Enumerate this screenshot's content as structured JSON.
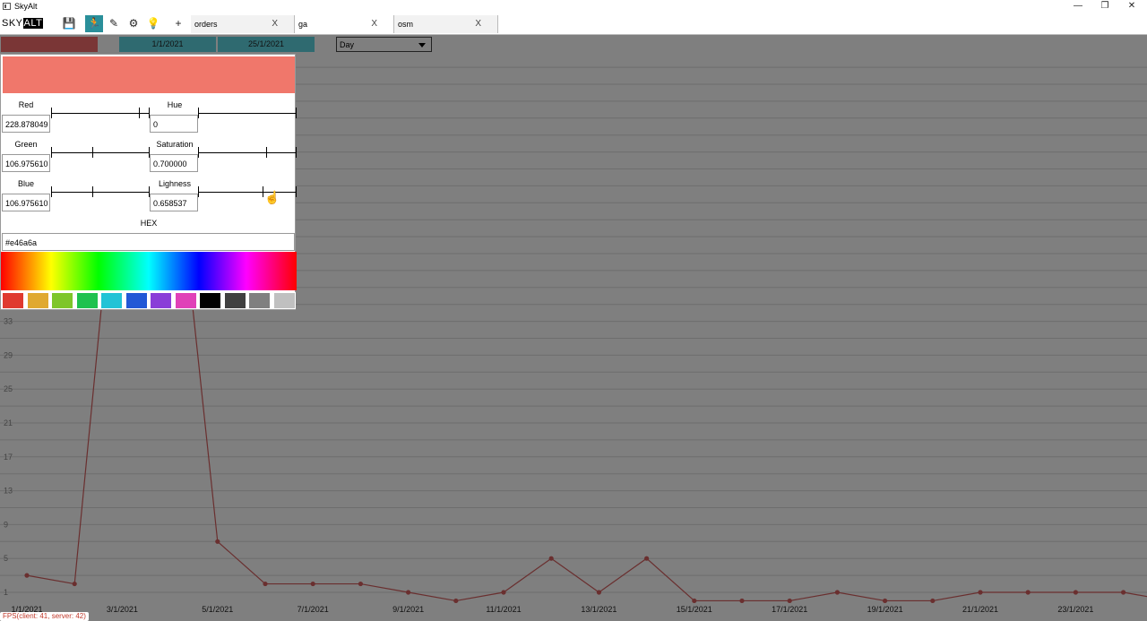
{
  "window": {
    "title": "SkyAlt",
    "minimize": "—",
    "restore": "❐",
    "close": "✕"
  },
  "logo": {
    "sky": "SKY",
    "alt": "ALT"
  },
  "toolbar": {
    "icons": [
      {
        "name": "save-icon",
        "glyph": "💾"
      },
      {
        "name": "run-icon",
        "glyph": "🏃"
      },
      {
        "name": "edit-icon",
        "glyph": "✎"
      },
      {
        "name": "settings-icon",
        "glyph": "⚙"
      },
      {
        "name": "idea-icon",
        "glyph": "💡"
      },
      {
        "name": "add-icon",
        "glyph": "+"
      }
    ],
    "tabs": [
      {
        "label": "orders",
        "close": "X",
        "active": false
      },
      {
        "label": "ga",
        "close": "X",
        "active": true
      },
      {
        "label": "osm",
        "close": "X",
        "active": false
      }
    ]
  },
  "filters": {
    "start_date": "1/1/2021",
    "end_date": "25/1/2021",
    "group_by": "Day"
  },
  "color_picker": {
    "preview_color": "#f0776b",
    "red_label": "Red",
    "red_value": "228.878049",
    "green_label": "Green",
    "green_value": "106.975610",
    "blue_label": "Blue",
    "blue_value": "106.975610",
    "hue_label": "Hue",
    "hue_value": "0",
    "saturation_label": "Saturation",
    "saturation_value": "0.700000",
    "lightness_label": "Lighness",
    "lightness_value": "0.658537",
    "hex_label": "HEX",
    "hex_value": "#e46a6a",
    "swatches": [
      "#e03a2f",
      "#e0a930",
      "#7ec62a",
      "#1fc24e",
      "#22c3d6",
      "#2258d6",
      "#8a3ed8",
      "#e040b8",
      "#000000",
      "#404040",
      "#808080",
      "#c0c0c0"
    ]
  },
  "status": {
    "fps": "FPS(client: 41, server: 42)"
  },
  "chart_data": {
    "type": "line",
    "y_ticks": [
      1,
      5,
      9,
      13,
      17,
      21,
      25,
      29,
      33
    ],
    "x_labels": [
      "1/1/2021",
      "3/1/2021",
      "5/1/2021",
      "7/1/2021",
      "9/1/2021",
      "11/1/2021",
      "13/1/2021",
      "15/1/2021",
      "17/1/2021",
      "19/1/2021",
      "21/1/2021",
      "23/1/2021"
    ],
    "ylim": [
      0,
      64
    ],
    "values": [
      3,
      2,
      60,
      60,
      7,
      2,
      2,
      2,
      1,
      0,
      1,
      5,
      1,
      5,
      0,
      0,
      0,
      1,
      0,
      0,
      1,
      1,
      1,
      1,
      0
    ],
    "series_color": "#6a2f2f",
    "grid": true
  }
}
